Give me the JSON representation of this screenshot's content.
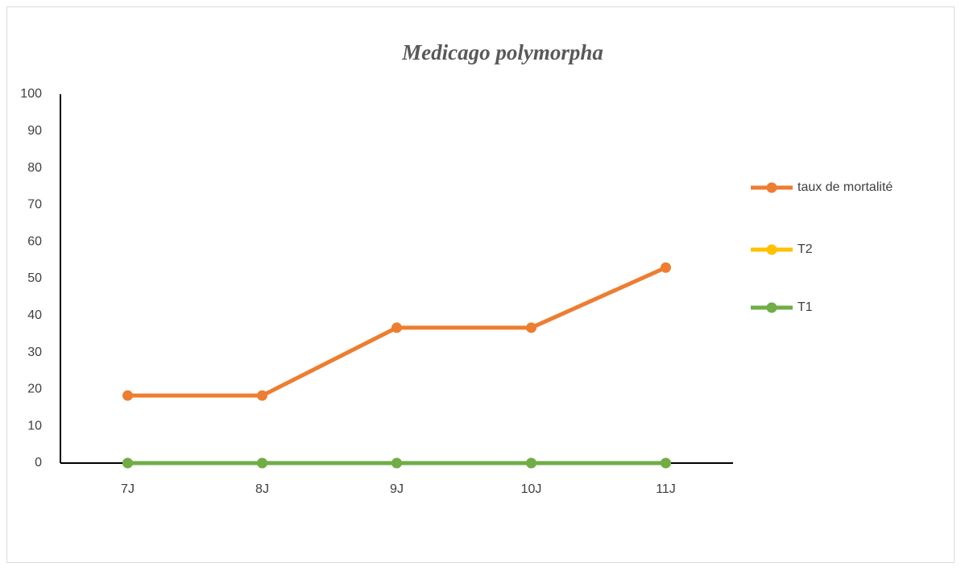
{
  "chart_data": {
    "type": "line",
    "title": "Medicago polymorpha",
    "categories": [
      "7J",
      "8J",
      "9J",
      "10J",
      "11J"
    ],
    "series": [
      {
        "name": "taux de mortalité",
        "color": "#ed7d31",
        "values": [
          18.3,
          18.3,
          36.7,
          36.7,
          53
        ]
      },
      {
        "name": "T2",
        "color": "#ffc000",
        "values": [
          0,
          0,
          0,
          0,
          0
        ]
      },
      {
        "name": "T1",
        "color": "#70ad47",
        "values": [
          0,
          0,
          0,
          0,
          0
        ]
      }
    ],
    "ylim": [
      0,
      100
    ],
    "yticks": [
      0,
      10,
      20,
      30,
      40,
      50,
      60,
      70,
      80,
      90,
      100
    ],
    "grid": false,
    "legend": "right"
  }
}
